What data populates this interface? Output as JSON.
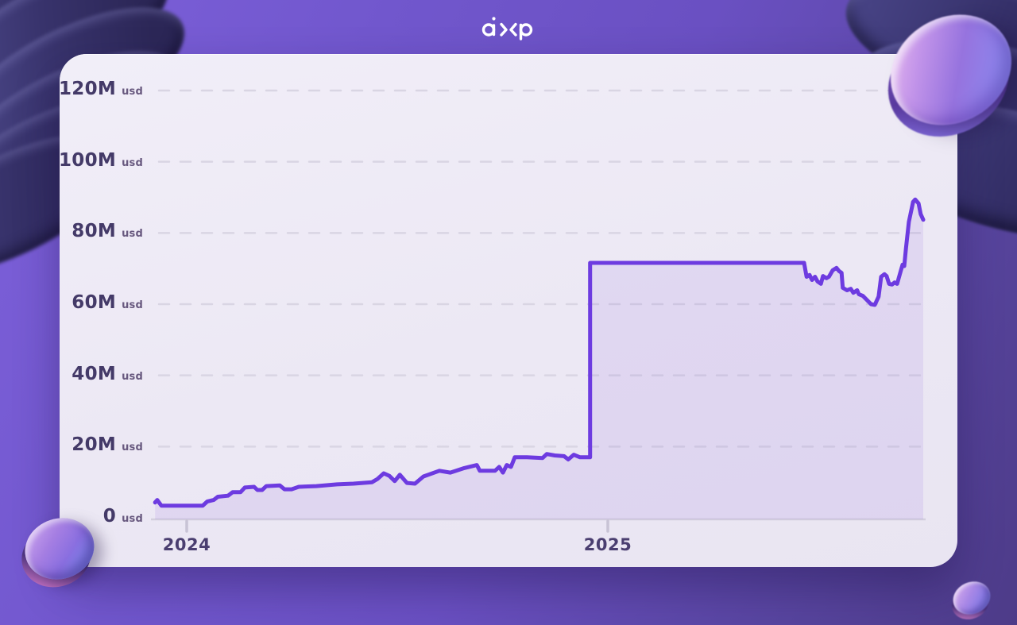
{
  "header": {
    "logo_text": "axp"
  },
  "decor": {
    "items": [
      {
        "name": "coin-stack-top-left"
      },
      {
        "name": "coin-stack-top-right"
      },
      {
        "name": "iridescent-coin-top-right"
      },
      {
        "name": "iridescent-coin-bottom-left"
      },
      {
        "name": "iridescent-coin-bottom-right"
      }
    ]
  },
  "chart_data": {
    "type": "line",
    "unit": "usd",
    "ylabel": "usd",
    "xlabel": "",
    "grid": "horizontal-dashed",
    "legend": "none",
    "x_range": [
      2023.92,
      2025.78
    ],
    "y_range": [
      0,
      120
    ],
    "line_color": "#6d3be0",
    "fill_color": "rgba(118,70,220,0.10)",
    "label_color": "#443a68",
    "y_ticks": [
      {
        "label": "0",
        "unit": "usd",
        "value": 0
      },
      {
        "label": "20M",
        "unit": "usd",
        "value": 20
      },
      {
        "label": "40M",
        "unit": "usd",
        "value": 40
      },
      {
        "label": "60M",
        "unit": "usd",
        "value": 60
      },
      {
        "label": "80M",
        "unit": "usd",
        "value": 80
      },
      {
        "label": "100M",
        "unit": "usd",
        "value": 100
      },
      {
        "label": "120M",
        "unit": "usd",
        "value": 120
      }
    ],
    "x_ticks": [
      {
        "label": "2024",
        "value": 2024
      },
      {
        "label": "2025",
        "value": 2025
      }
    ],
    "series": [
      {
        "name": "value-usd",
        "points": [
          [
            2023.925,
            4.3
          ],
          [
            2023.93,
            5.0
          ],
          [
            2023.94,
            3.4
          ],
          [
            2024.038,
            3.4
          ],
          [
            2024.049,
            4.6
          ],
          [
            2024.064,
            5.0
          ],
          [
            2024.074,
            5.9
          ],
          [
            2024.098,
            6.2
          ],
          [
            2024.109,
            7.2
          ],
          [
            2024.128,
            7.2
          ],
          [
            2024.138,
            8.5
          ],
          [
            2024.16,
            8.7
          ],
          [
            2024.168,
            7.8
          ],
          [
            2024.179,
            7.8
          ],
          [
            2024.189,
            8.9
          ],
          [
            2024.221,
            9.1
          ],
          [
            2024.232,
            8.0
          ],
          [
            2024.249,
            8.0
          ],
          [
            2024.266,
            8.7
          ],
          [
            2024.308,
            8.9
          ],
          [
            2024.357,
            9.4
          ],
          [
            2024.396,
            9.6
          ],
          [
            2024.44,
            10.0
          ],
          [
            2024.453,
            10.9
          ],
          [
            2024.468,
            12.5
          ],
          [
            2024.481,
            11.8
          ],
          [
            2024.494,
            10.3
          ],
          [
            2024.506,
            12.1
          ],
          [
            2024.523,
            9.8
          ],
          [
            2024.542,
            9.6
          ],
          [
            2024.562,
            11.6
          ],
          [
            2024.6,
            13.2
          ],
          [
            2024.626,
            12.7
          ],
          [
            2024.657,
            13.9
          ],
          [
            2024.689,
            14.8
          ],
          [
            2024.696,
            13.2
          ],
          [
            2024.732,
            13.2
          ],
          [
            2024.742,
            14.3
          ],
          [
            2024.751,
            12.7
          ],
          [
            2024.76,
            14.8
          ],
          [
            2024.77,
            14.3
          ],
          [
            2024.779,
            17.0
          ],
          [
            2024.808,
            17.0
          ],
          [
            2024.845,
            16.8
          ],
          [
            2024.855,
            17.9
          ],
          [
            2024.874,
            17.5
          ],
          [
            2024.896,
            17.3
          ],
          [
            2024.906,
            16.4
          ],
          [
            2024.919,
            17.7
          ],
          [
            2024.934,
            17.0
          ],
          [
            2024.953,
            17.0
          ],
          [
            2024.958,
            17.0
          ],
          [
            2024.958,
            71.6
          ],
          [
            2025.466,
            71.6
          ],
          [
            2025.472,
            67.7
          ],
          [
            2025.479,
            68.2
          ],
          [
            2025.485,
            66.8
          ],
          [
            2025.492,
            67.7
          ],
          [
            2025.498,
            66.4
          ],
          [
            2025.506,
            65.7
          ],
          [
            2025.511,
            67.9
          ],
          [
            2025.519,
            67.3
          ],
          [
            2025.525,
            67.7
          ],
          [
            2025.534,
            69.5
          ],
          [
            2025.543,
            70.2
          ],
          [
            2025.549,
            69.3
          ],
          [
            2025.555,
            68.8
          ],
          [
            2025.558,
            64.6
          ],
          [
            2025.568,
            63.9
          ],
          [
            2025.577,
            64.3
          ],
          [
            2025.583,
            63.2
          ],
          [
            2025.592,
            63.9
          ],
          [
            2025.596,
            62.8
          ],
          [
            2025.606,
            62.3
          ],
          [
            2025.615,
            61.2
          ],
          [
            2025.625,
            60.0
          ],
          [
            2025.634,
            59.8
          ],
          [
            2025.643,
            62.1
          ],
          [
            2025.649,
            67.7
          ],
          [
            2025.657,
            68.4
          ],
          [
            2025.662,
            67.9
          ],
          [
            2025.668,
            65.7
          ],
          [
            2025.675,
            65.5
          ],
          [
            2025.681,
            66.1
          ],
          [
            2025.687,
            65.7
          ],
          [
            2025.696,
            69.5
          ],
          [
            2025.7,
            71.1
          ],
          [
            2025.704,
            70.7
          ],
          [
            2025.708,
            75.6
          ],
          [
            2025.715,
            83.1
          ],
          [
            2025.725,
            88.7
          ],
          [
            2025.73,
            89.4
          ],
          [
            2025.738,
            88.3
          ],
          [
            2025.743,
            85.3
          ],
          [
            2025.749,
            83.7
          ]
        ]
      }
    ]
  }
}
